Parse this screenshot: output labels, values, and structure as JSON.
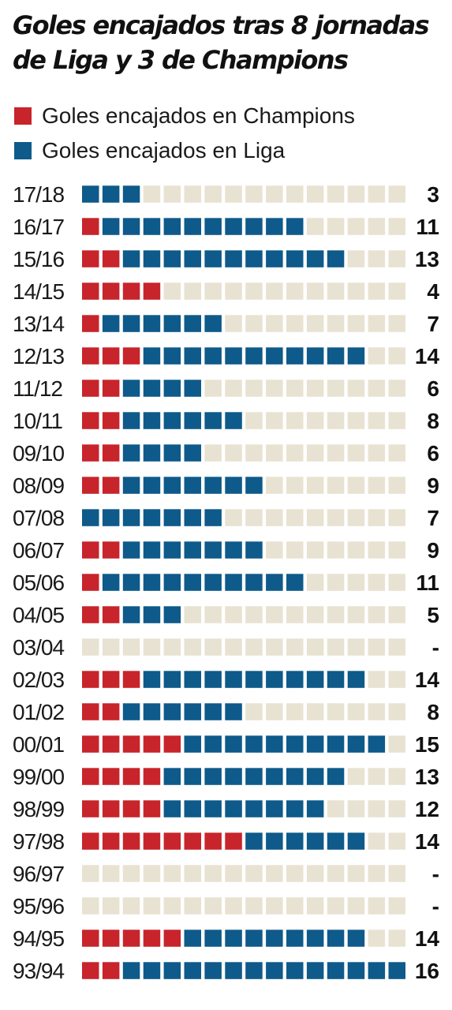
{
  "title": "Goles encajados tras 8  jornadas de Liga y 3 de Champions",
  "colors": {
    "champions": "#c8242b",
    "liga": "#0e5a8a",
    "empty": "#e8e2d2"
  },
  "legend": {
    "champions": "Goles encajados en Champions",
    "liga": "Goles encajados en Liga"
  },
  "chart_data": {
    "type": "bar",
    "orientation": "horizontal",
    "stacked": true,
    "grid_units_per_row": 16,
    "title": "Goles encajados tras 8  jornadas de Liga y 3 de Champions",
    "legend_position": "top-left",
    "series": [
      {
        "name": "Goles encajados en Champions",
        "values": [
          0,
          1,
          2,
          4,
          1,
          3,
          2,
          2,
          2,
          2,
          0,
          2,
          1,
          2,
          0,
          3,
          2,
          5,
          4,
          4,
          8,
          0,
          0,
          5,
          2
        ]
      },
      {
        "name": "Goles encajados en Liga",
        "values": [
          3,
          10,
          11,
          0,
          6,
          11,
          4,
          6,
          4,
          7,
          7,
          7,
          10,
          3,
          0,
          11,
          6,
          10,
          9,
          8,
          6,
          0,
          0,
          9,
          14
        ]
      }
    ],
    "categories": [
      "17/18",
      "16/17",
      "15/16",
      "14/15",
      "13/14",
      "12/13",
      "11/12",
      "10/11",
      "09/10",
      "08/09",
      "07/08",
      "06/07",
      "05/06",
      "04/05",
      "03/04",
      "02/03",
      "01/02",
      "00/01",
      "99/00",
      "98/99",
      "97/98",
      "96/97",
      "95/96",
      "94/95",
      "93/94"
    ],
    "totals": [
      "3",
      "11",
      "13",
      "4",
      "7",
      "14",
      "6",
      "8",
      "6",
      "9",
      "7",
      "9",
      "11",
      "5",
      "-",
      "14",
      "8",
      "15",
      "13",
      "12",
      "14",
      "-",
      "-",
      "14",
      "16"
    ]
  }
}
